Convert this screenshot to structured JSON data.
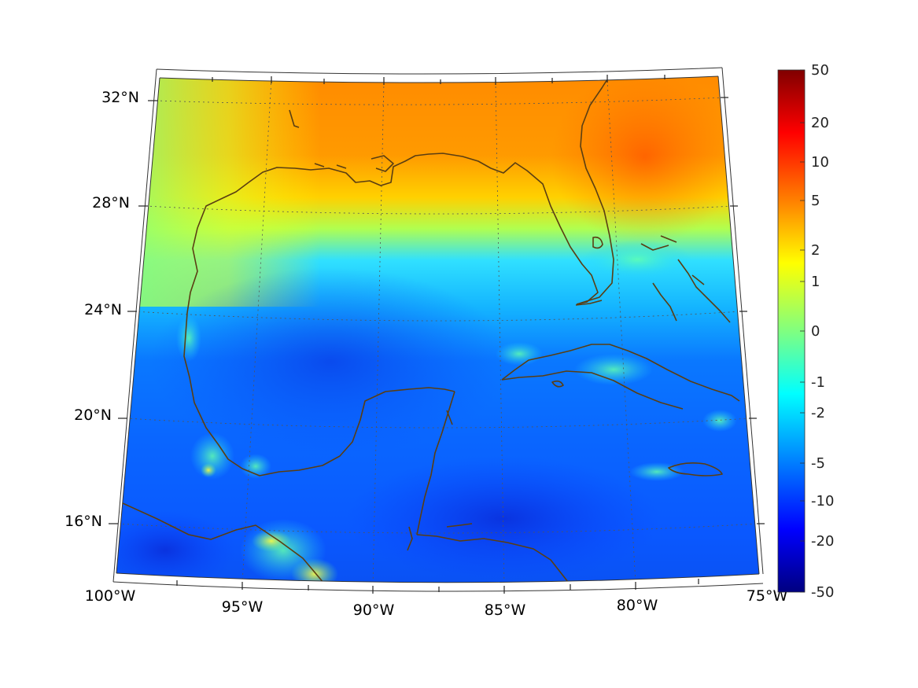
{
  "map": {
    "type": "filled-contour-map",
    "projection": "conic",
    "lon_labels": [
      "100°W",
      "95°W",
      "90°W",
      "85°W",
      "80°W",
      "75°W"
    ],
    "lat_labels": [
      "32°N",
      "28°N",
      "24°N",
      "20°N",
      "16°N"
    ],
    "lon_range": [
      -100,
      -75
    ],
    "lat_range": [
      14,
      33
    ],
    "grid": true,
    "coastline_color": "#5a3e12",
    "colormap": "jet"
  },
  "colorbar": {
    "ticks": [
      "50",
      "20",
      "10",
      "5",
      "2",
      "1",
      "0",
      "-1",
      "-2",
      "-5",
      "-10",
      "-20",
      "-50"
    ],
    "colors": [
      "#800000",
      "#ff0000",
      "#ff8000",
      "#ffff00",
      "#80ff80",
      "#00ffff",
      "#0080ff",
      "#0000ff",
      "#000080"
    ]
  }
}
